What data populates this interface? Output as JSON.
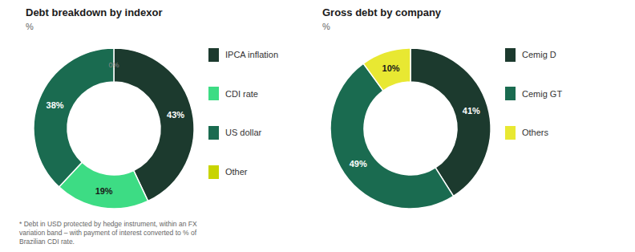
{
  "chart_data": [
    {
      "type": "pie",
      "title": "Debt breakdown by indexor",
      "subtitle": "%",
      "categories": [
        "IPCA inflation",
        "CDI rate",
        "US dollar",
        "Other"
      ],
      "values": [
        43,
        19,
        38,
        0
      ],
      "value_labels": [
        "43%",
        "19%",
        "38%",
        "0%"
      ],
      "colors": [
        "#1c3a2e",
        "#3ddc84",
        "#1a6b50",
        "#c8d400"
      ],
      "data_labels": true,
      "legend": "right",
      "annotations": [
        "* Debt in USD protected by hedge instrument, within an FX\nvariation band – with payment of interest converted to % of\nBrazilian CDI rate."
      ]
    },
    {
      "type": "pie",
      "title": "Gross debt by company",
      "subtitle": "%",
      "categories": [
        "Cemig D",
        "Cemig GT",
        "Others"
      ],
      "values": [
        41,
        49,
        10
      ],
      "value_labels": [
        "41%",
        "49%",
        "10%"
      ],
      "colors": [
        "#1c3a2e",
        "#1a6b50",
        "#e8e832"
      ],
      "data_labels": true,
      "legend": "right"
    }
  ]
}
